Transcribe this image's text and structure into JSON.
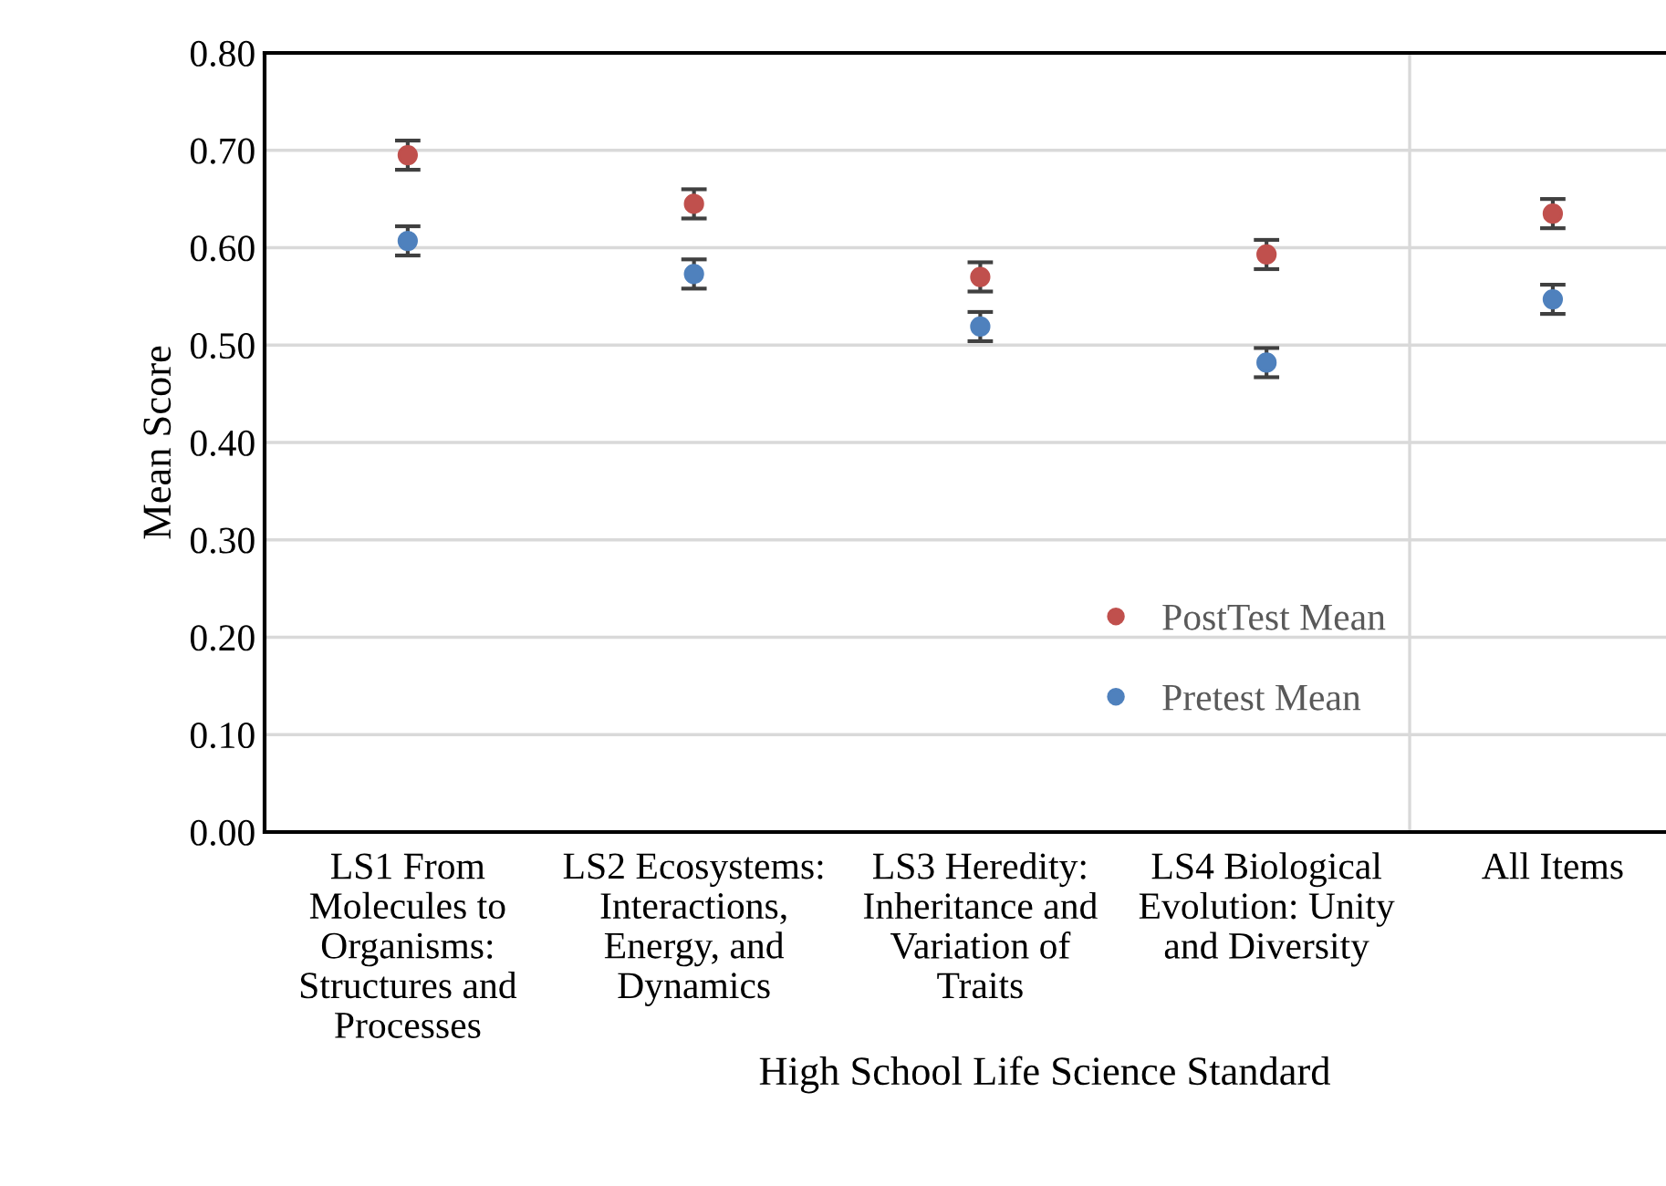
{
  "chart_data": {
    "type": "scatter",
    "xlabel": "High School Life Science Standard",
    "ylabel": "Mean Score",
    "categories": [
      "LS1 From Molecules to Organisms: Structures and Processes",
      "LS2 Ecosystems: Interactions, Energy, and Dynamics",
      "LS3 Heredity: Inheritance and Variation of Traits",
      "LS4 Biological Evolution: Unity and Diversity",
      "All Items"
    ],
    "series": [
      {
        "name": "PostTest Mean",
        "color": "#c0504d",
        "values": [
          0.695,
          0.645,
          0.57,
          0.593,
          0.635
        ],
        "errors": [
          0.015,
          0.015,
          0.015,
          0.015,
          0.015
        ]
      },
      {
        "name": "Pretest Mean",
        "color": "#4f81bd",
        "values": [
          0.607,
          0.573,
          0.519,
          0.482,
          0.547
        ],
        "errors": [
          0.015,
          0.015,
          0.015,
          0.015,
          0.015
        ]
      }
    ],
    "ylim": [
      0,
      0.8
    ],
    "yticks": [
      {
        "value": 0,
        "label": "0.00"
      },
      {
        "value": 0.1,
        "label": "0.10"
      },
      {
        "value": 0.2,
        "label": "0.20"
      },
      {
        "value": 0.3,
        "label": "0.30"
      },
      {
        "value": 0.4,
        "label": "0.40"
      },
      {
        "value": 0.5,
        "label": "0.50"
      },
      {
        "value": 0.6,
        "label": "0.60"
      },
      {
        "value": 0.7,
        "label": "0.70"
      },
      {
        "value": 0.8,
        "label": "0.80"
      }
    ],
    "grid": "y",
    "legend": "bottom",
    "marker": "circle"
  }
}
